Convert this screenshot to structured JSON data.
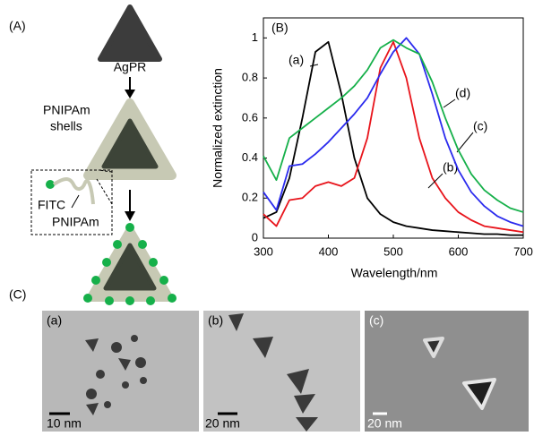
{
  "panel_a": {
    "label": "(A)",
    "core": "AgPR",
    "shell_line1": "PNIPAm",
    "shell_line2": "shells",
    "dye": "FITC",
    "polymer": "PNIPAm"
  },
  "chart_data": {
    "type": "line",
    "panel_label": "(B)",
    "x_label": "Wavelength/nm",
    "y_label": "Normalized extinction",
    "x": [
      300,
      320,
      340,
      360,
      380,
      400,
      420,
      440,
      460,
      480,
      500,
      520,
      540,
      560,
      580,
      600,
      620,
      640,
      660,
      680,
      700
    ],
    "series": [
      {
        "name": "(a)",
        "color": "#000000",
        "values": [
          0.1,
          0.13,
          0.3,
          0.6,
          0.93,
          0.98,
          0.72,
          0.4,
          0.2,
          0.12,
          0.08,
          0.06,
          0.05,
          0.04,
          0.035,
          0.03,
          0.025,
          0.02,
          0.02,
          0.015,
          0.015
        ]
      },
      {
        "name": "(b)",
        "color": "#e8141b",
        "values": [
          0.12,
          0.06,
          0.19,
          0.2,
          0.26,
          0.28,
          0.26,
          0.3,
          0.5,
          0.85,
          0.98,
          0.8,
          0.5,
          0.3,
          0.2,
          0.13,
          0.09,
          0.06,
          0.05,
          0.04,
          0.03
        ]
      },
      {
        "name": "(c)",
        "color": "#2b2bee",
        "values": [
          0.23,
          0.14,
          0.36,
          0.37,
          0.42,
          0.48,
          0.55,
          0.62,
          0.7,
          0.82,
          0.93,
          1.0,
          0.92,
          0.72,
          0.5,
          0.34,
          0.23,
          0.16,
          0.11,
          0.08,
          0.06
        ]
      },
      {
        "name": "(d)",
        "color": "#16b04a",
        "values": [
          0.41,
          0.29,
          0.5,
          0.55,
          0.6,
          0.65,
          0.7,
          0.76,
          0.84,
          0.95,
          0.99,
          0.95,
          0.92,
          0.78,
          0.6,
          0.44,
          0.32,
          0.24,
          0.19,
          0.15,
          0.13
        ]
      }
    ],
    "xlim": [
      300,
      700
    ],
    "xticks": [
      300,
      400,
      500,
      600,
      700
    ],
    "ylim": [
      0,
      1.1
    ],
    "yticks": [
      0,
      0.2,
      0.4,
      0.6,
      0.8,
      1
    ]
  },
  "panel_c": {
    "label": "(C)",
    "images": [
      {
        "label": "(a)",
        "scale": "10 nm"
      },
      {
        "label": "(b)",
        "scale": "20 nm"
      },
      {
        "label": "(c)",
        "scale": "20 nm"
      }
    ]
  }
}
